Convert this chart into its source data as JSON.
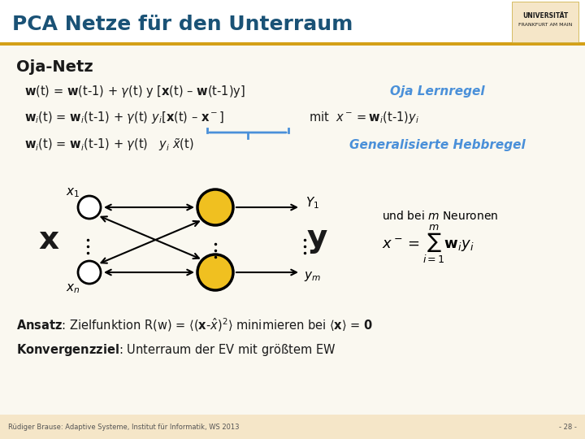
{
  "title": "PCA Netze für den Unterraum",
  "title_color": "#1a5276",
  "title_fontsize": 18,
  "bg_color": "#ffffff",
  "footer_bg": "#f5e6c8",
  "footer_text": "Rüdiger Brause: Adaptive Systeme, Institut für Informatik, WS 2013",
  "footer_page": "- 28 -",
  "header_line_color": "#d4a017",
  "section_title": "Oja-Netz",
  "formula1": "$\\mathbf{w}$(t) = $\\mathbf{w}$(t-1) + $\\gamma$(t) y [$\\mathbf{x}$(t) – $\\mathbf{w}$(t-1)y]",
  "formula2": "$\\mathbf{w}_i$(t) = $\\mathbf{w}_i$(t-1) + $\\gamma$(t) $y_i$[$\\mathbf{x}$(t) – $\\mathbf{x}^-$]",
  "formula3": "$\\mathbf{w}_i$(t) = $\\mathbf{w}_i$(t-1) + $\\gamma$(t)   $y_i$ $\\tilde{x}$(t)",
  "mit_text": "mit  $x^- = \\mathbf{w}_i$(t-1)$y_i$",
  "oja_label": "Oja Lernregel",
  "hebb_label": "Generalisierte Hebbregel",
  "ansatz": "$\\mathbf{Ansatz}$: Zielfunktion R(w) = $\\langle(\\mathbf{x}$-$\\hat{x})^2\\rangle$ minimieren bei $\\langle\\mathbf{x}\\rangle$ = $\\mathbf{0}$",
  "konverg": "$\\mathbf{Konvergenzziel}$: Unterraum der EV mit größtem EW",
  "node_fill": "#f0c020",
  "node_edge": "#000000",
  "input_fill": "#ffffff",
  "arrow_color": "#000000",
  "brace_color": "#4a90d9",
  "text_color": "#000000",
  "blue_text_color": "#4a90d9"
}
